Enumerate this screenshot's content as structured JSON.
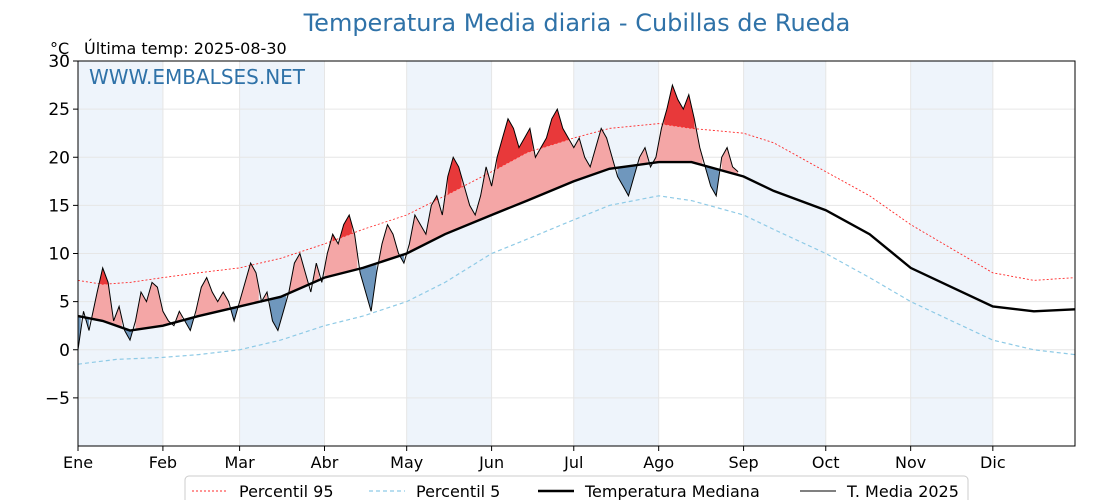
{
  "title": "Temperatura Media diaria - Cubillas de Rueda",
  "unit_label": "°C",
  "last_temp_label": "Última temp: 2025-08-30",
  "watermark": "WWW.EMBALSES.NET",
  "chart_data": {
    "type": "line",
    "title": "Temperatura Media diaria - Cubillas de Rueda",
    "xlabel": "",
    "ylabel": "°C",
    "ylim": [
      -10,
      30
    ],
    "yticks": [
      -5,
      0,
      5,
      10,
      15,
      20,
      25,
      30
    ],
    "ytick_labels": [
      "−5",
      "0",
      "5",
      "10",
      "15",
      "20",
      "25",
      "30"
    ],
    "x_range_days": [
      1,
      365
    ],
    "month_labels": [
      "Ene",
      "Feb",
      "Mar",
      "Abr",
      "May",
      "Jun",
      "Jul",
      "Ago",
      "Sep",
      "Oct",
      "Nov",
      "Dic"
    ],
    "month_start_days": [
      1,
      32,
      60,
      91,
      121,
      152,
      182,
      213,
      244,
      274,
      305,
      335
    ],
    "grid": true,
    "legend_position": "bottom",
    "last_day_2025": 242,
    "colors": {
      "p95": "#ff2a2a",
      "p5": "#8ecae6",
      "median": "#000000",
      "current": "#000000",
      "above_fill": "#f4a6a6",
      "above_p95_fill": "#e8393a",
      "below_fill": "#6f97bd",
      "below_p5_fill": "#1f4e9a",
      "month_band": "#eef4fb",
      "title": "#2f72a8"
    },
    "series": [
      {
        "name": "Percentil 95",
        "style": "dotted-red",
        "points": [
          [
            1,
            7.2
          ],
          [
            10,
            6.8
          ],
          [
            20,
            7.0
          ],
          [
            32,
            7.5
          ],
          [
            45,
            8.0
          ],
          [
            60,
            8.5
          ],
          [
            75,
            9.5
          ],
          [
            91,
            11.0
          ],
          [
            105,
            12.5
          ],
          [
            121,
            14.0
          ],
          [
            135,
            16.0
          ],
          [
            152,
            18.5
          ],
          [
            165,
            20.5
          ],
          [
            182,
            22.0
          ],
          [
            195,
            23.0
          ],
          [
            213,
            23.5
          ],
          [
            225,
            23.0
          ],
          [
            244,
            22.5
          ],
          [
            255,
            21.5
          ],
          [
            274,
            18.5
          ],
          [
            290,
            16.0
          ],
          [
            305,
            13.0
          ],
          [
            320,
            10.5
          ],
          [
            335,
            8.0
          ],
          [
            350,
            7.2
          ],
          [
            365,
            7.5
          ]
        ]
      },
      {
        "name": "Percentil 5",
        "style": "dashed-lightblue",
        "points": [
          [
            1,
            -1.5
          ],
          [
            15,
            -1.0
          ],
          [
            32,
            -0.8
          ],
          [
            45,
            -0.5
          ],
          [
            60,
            0.0
          ],
          [
            75,
            1.0
          ],
          [
            91,
            2.5
          ],
          [
            105,
            3.5
          ],
          [
            121,
            5.0
          ],
          [
            135,
            7.0
          ],
          [
            152,
            10.0
          ],
          [
            165,
            11.5
          ],
          [
            182,
            13.5
          ],
          [
            195,
            15.0
          ],
          [
            213,
            16.0
          ],
          [
            225,
            15.5
          ],
          [
            244,
            14.0
          ],
          [
            255,
            12.5
          ],
          [
            274,
            10.0
          ],
          [
            290,
            7.5
          ],
          [
            305,
            5.0
          ],
          [
            320,
            3.0
          ],
          [
            335,
            1.0
          ],
          [
            350,
            0.0
          ],
          [
            365,
            -0.5
          ]
        ]
      },
      {
        "name": "Temperatura Mediana",
        "style": "thick-black",
        "points": [
          [
            1,
            3.5
          ],
          [
            10,
            3.0
          ],
          [
            20,
            2.0
          ],
          [
            32,
            2.5
          ],
          [
            45,
            3.5
          ],
          [
            60,
            4.5
          ],
          [
            75,
            5.5
          ],
          [
            91,
            7.5
          ],
          [
            105,
            8.5
          ],
          [
            121,
            10.0
          ],
          [
            135,
            12.0
          ],
          [
            152,
            14.0
          ],
          [
            165,
            15.5
          ],
          [
            182,
            17.5
          ],
          [
            195,
            18.8
          ],
          [
            213,
            19.5
          ],
          [
            225,
            19.5
          ],
          [
            244,
            18.0
          ],
          [
            255,
            16.5
          ],
          [
            274,
            14.5
          ],
          [
            290,
            12.0
          ],
          [
            305,
            8.5
          ],
          [
            320,
            6.5
          ],
          [
            335,
            4.5
          ],
          [
            350,
            4.0
          ],
          [
            365,
            4.2
          ]
        ]
      },
      {
        "name": "T. Media 2025",
        "style": "thin-black",
        "points": [
          [
            1,
            0
          ],
          [
            3,
            4
          ],
          [
            5,
            2
          ],
          [
            8,
            6
          ],
          [
            10,
            8.5
          ],
          [
            12,
            7
          ],
          [
            14,
            3
          ],
          [
            16,
            4.5
          ],
          [
            18,
            2
          ],
          [
            20,
            1
          ],
          [
            22,
            3
          ],
          [
            24,
            6
          ],
          [
            26,
            5
          ],
          [
            28,
            7
          ],
          [
            30,
            6.5
          ],
          [
            32,
            4
          ],
          [
            34,
            3
          ],
          [
            36,
            2.5
          ],
          [
            38,
            4
          ],
          [
            40,
            3
          ],
          [
            42,
            2
          ],
          [
            44,
            4
          ],
          [
            46,
            6.5
          ],
          [
            48,
            7.5
          ],
          [
            50,
            6
          ],
          [
            52,
            5
          ],
          [
            54,
            6
          ],
          [
            56,
            5
          ],
          [
            58,
            3
          ],
          [
            60,
            5
          ],
          [
            62,
            7
          ],
          [
            64,
            9
          ],
          [
            66,
            8
          ],
          [
            68,
            5
          ],
          [
            70,
            6
          ],
          [
            72,
            3
          ],
          [
            74,
            2
          ],
          [
            76,
            4
          ],
          [
            78,
            6
          ],
          [
            80,
            9
          ],
          [
            82,
            10
          ],
          [
            84,
            8
          ],
          [
            86,
            6
          ],
          [
            88,
            9
          ],
          [
            90,
            7
          ],
          [
            92,
            10
          ],
          [
            94,
            12
          ],
          [
            96,
            11
          ],
          [
            98,
            13
          ],
          [
            100,
            14
          ],
          [
            102,
            12
          ],
          [
            104,
            8
          ],
          [
            106,
            6
          ],
          [
            108,
            4
          ],
          [
            110,
            8
          ],
          [
            112,
            11
          ],
          [
            114,
            13
          ],
          [
            116,
            12
          ],
          [
            118,
            10
          ],
          [
            120,
            9
          ],
          [
            122,
            11
          ],
          [
            124,
            14
          ],
          [
            126,
            13
          ],
          [
            128,
            12
          ],
          [
            130,
            15
          ],
          [
            132,
            16
          ],
          [
            134,
            14
          ],
          [
            136,
            18
          ],
          [
            138,
            20
          ],
          [
            140,
            19
          ],
          [
            142,
            17
          ],
          [
            144,
            15
          ],
          [
            146,
            14
          ],
          [
            148,
            16
          ],
          [
            150,
            19
          ],
          [
            152,
            17
          ],
          [
            154,
            20
          ],
          [
            156,
            22
          ],
          [
            158,
            24
          ],
          [
            160,
            23
          ],
          [
            162,
            21
          ],
          [
            164,
            22
          ],
          [
            166,
            23
          ],
          [
            168,
            20
          ],
          [
            170,
            21
          ],
          [
            172,
            22
          ],
          [
            174,
            24
          ],
          [
            176,
            25
          ],
          [
            178,
            23
          ],
          [
            180,
            22
          ],
          [
            182,
            21
          ],
          [
            184,
            22
          ],
          [
            186,
            20
          ],
          [
            188,
            19
          ],
          [
            190,
            21
          ],
          [
            192,
            23
          ],
          [
            194,
            22
          ],
          [
            196,
            20
          ],
          [
            198,
            18
          ],
          [
            200,
            17
          ],
          [
            202,
            16
          ],
          [
            204,
            18
          ],
          [
            206,
            20
          ],
          [
            208,
            21
          ],
          [
            210,
            19
          ],
          [
            212,
            20
          ],
          [
            214,
            23
          ],
          [
            216,
            25
          ],
          [
            218,
            27.5
          ],
          [
            220,
            26
          ],
          [
            222,
            25
          ],
          [
            224,
            26.5
          ],
          [
            226,
            24
          ],
          [
            228,
            21
          ],
          [
            230,
            19
          ],
          [
            232,
            17
          ],
          [
            234,
            16
          ],
          [
            236,
            20
          ],
          [
            238,
            21
          ],
          [
            240,
            19
          ],
          [
            242,
            18.5
          ]
        ]
      }
    ]
  },
  "legend": [
    {
      "label": "Percentil 95",
      "key": "p95"
    },
    {
      "label": "Percentil 5",
      "key": "p5"
    },
    {
      "label": "Temperatura Mediana",
      "key": "median"
    },
    {
      "label": "T. Media 2025",
      "key": "current"
    }
  ]
}
